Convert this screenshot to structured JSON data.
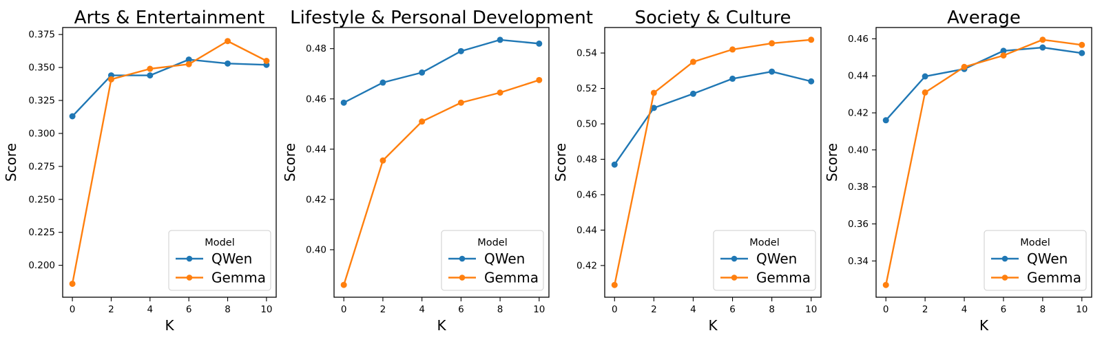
{
  "figure": {
    "background": "#ffffff",
    "series_colors": {
      "qwen": "#1f77b4",
      "gemma": "#ff7f0e"
    },
    "legend": {
      "title": "Model",
      "labels": [
        "QWen",
        "Gemma"
      ],
      "position": "lower right"
    }
  },
  "chart_data": [
    {
      "type": "line",
      "title": "Arts & Entertainment",
      "xlabel": "K",
      "ylabel": "Score",
      "x": [
        0,
        2,
        4,
        6,
        8,
        10
      ],
      "xtick_labels": [
        "0",
        "2",
        "4",
        "6",
        "8",
        "10"
      ],
      "xlim": [
        -0.5,
        10.5
      ],
      "ylim": [
        0.1758,
        0.3803
      ],
      "yticks": [
        0.2,
        0.225,
        0.25,
        0.275,
        0.3,
        0.325,
        0.35,
        0.375
      ],
      "ytick_labels": [
        "0.200",
        "0.225",
        "0.250",
        "0.275",
        "0.300",
        "0.325",
        "0.350",
        "0.375"
      ],
      "grid": false,
      "legend": {
        "title": "Model",
        "position": "lower right"
      },
      "series": [
        {
          "name": "QWen",
          "color": "#1f77b4",
          "values": [
            0.313,
            0.344,
            0.344,
            0.356,
            0.353,
            0.352
          ]
        },
        {
          "name": "Gemma",
          "color": "#ff7f0e",
          "values": [
            0.186,
            0.341,
            0.349,
            0.3525,
            0.37,
            0.355
          ]
        }
      ]
    },
    {
      "type": "line",
      "title": "Lifestyle & Personal Development",
      "xlabel": "K",
      "ylabel": "Score",
      "x": [
        0,
        2,
        4,
        6,
        8,
        10
      ],
      "xtick_labels": [
        "0",
        "2",
        "4",
        "6",
        "8",
        "10"
      ],
      "xlim": [
        -0.5,
        10.5
      ],
      "ylim": [
        0.3811,
        0.4884
      ],
      "yticks": [
        0.4,
        0.42,
        0.44,
        0.46,
        0.48
      ],
      "ytick_labels": [
        "0.40",
        "0.42",
        "0.44",
        "0.46",
        "0.48"
      ],
      "grid": false,
      "legend": {
        "title": "Model",
        "position": "lower right"
      },
      "series": [
        {
          "name": "QWen",
          "color": "#1f77b4",
          "values": [
            0.4585,
            0.4665,
            0.4705,
            0.479,
            0.4835,
            0.482
          ]
        },
        {
          "name": "Gemma",
          "color": "#ff7f0e",
          "values": [
            0.386,
            0.4355,
            0.451,
            0.4585,
            0.4625,
            0.4675
          ]
        }
      ]
    },
    {
      "type": "line",
      "title": "Society & Culture",
      "xlabel": "K",
      "ylabel": "Score",
      "x": [
        0,
        2,
        4,
        6,
        8,
        10
      ],
      "xtick_labels": [
        "0",
        "2",
        "4",
        "6",
        "8",
        "10"
      ],
      "xlim": [
        -0.5,
        10.5
      ],
      "ylim": [
        0.4021,
        0.5544
      ],
      "yticks": [
        0.42,
        0.44,
        0.46,
        0.48,
        0.5,
        0.52,
        0.54
      ],
      "ytick_labels": [
        "0.42",
        "0.44",
        "0.46",
        "0.48",
        "0.50",
        "0.52",
        "0.54"
      ],
      "grid": false,
      "legend": {
        "title": "Model",
        "position": "lower right"
      },
      "series": [
        {
          "name": "QWen",
          "color": "#1f77b4",
          "values": [
            0.477,
            0.509,
            0.517,
            0.5255,
            0.5295,
            0.524
          ]
        },
        {
          "name": "Gemma",
          "color": "#ff7f0e",
          "values": [
            0.409,
            0.5175,
            0.535,
            0.542,
            0.5455,
            0.5475
          ]
        }
      ]
    },
    {
      "type": "line",
      "title": "Average",
      "xlabel": "K",
      "ylabel": "Score",
      "x": [
        0,
        2,
        4,
        6,
        8,
        10
      ],
      "xtick_labels": [
        "0",
        "2",
        "4",
        "6",
        "8",
        "10"
      ],
      "xlim": [
        -0.5,
        10.5
      ],
      "ylim": [
        0.3204,
        0.4661
      ],
      "yticks": [
        0.34,
        0.36,
        0.38,
        0.4,
        0.42,
        0.44,
        0.46
      ],
      "ytick_labels": [
        "0.34",
        "0.36",
        "0.38",
        "0.40",
        "0.42",
        "0.44",
        "0.46"
      ],
      "grid": false,
      "legend": {
        "title": "Model",
        "position": "lower right"
      },
      "series": [
        {
          "name": "QWen",
          "color": "#1f77b4",
          "values": [
            0.416,
            0.4397,
            0.4437,
            0.4535,
            0.4553,
            0.4523
          ]
        },
        {
          "name": "Gemma",
          "color": "#ff7f0e",
          "values": [
            0.327,
            0.431,
            0.4448,
            0.451,
            0.4595,
            0.4567
          ]
        }
      ]
    }
  ]
}
